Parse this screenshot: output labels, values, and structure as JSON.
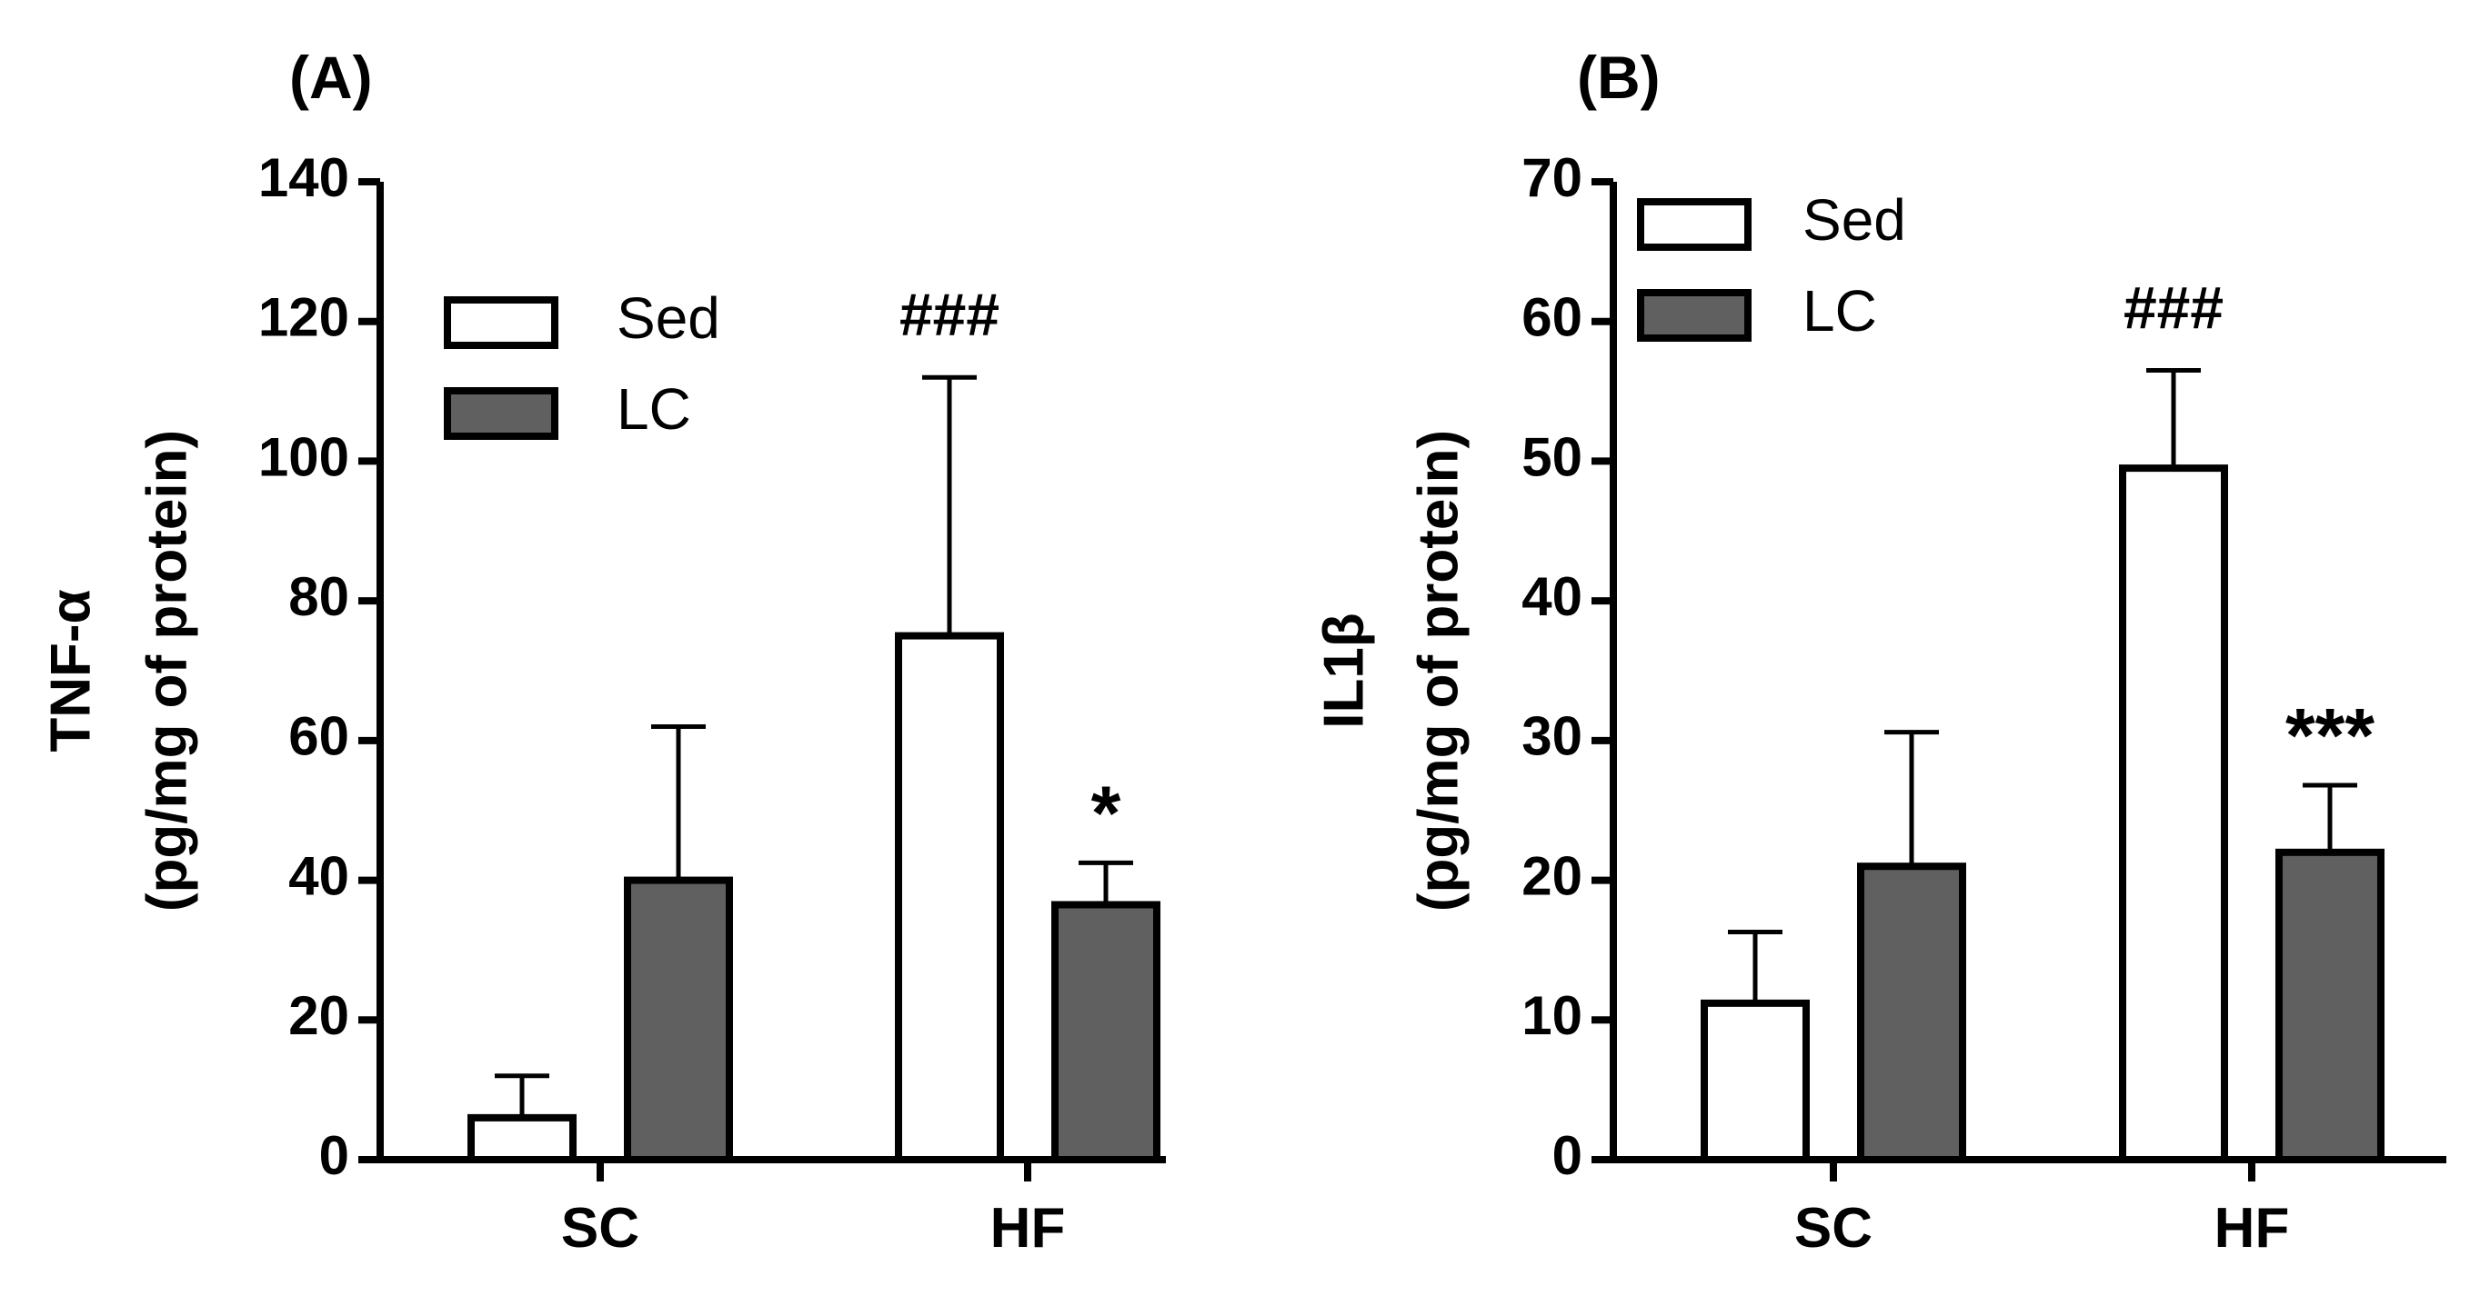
{
  "chart_data": [
    {
      "type": "bar",
      "panel_label": "(A)",
      "ylabel_line1": "TNF-α",
      "ylabel_line2": "(pg/mg of protein)",
      "categories": [
        "SC",
        "HF"
      ],
      "ylim": [
        0,
        140
      ],
      "yticks": [
        0,
        20,
        40,
        60,
        80,
        100,
        120,
        140
      ],
      "series": [
        {
          "name": "Sed",
          "color": "#ffffff",
          "values": [
            6,
            75
          ],
          "errors": [
            6,
            37
          ]
        },
        {
          "name": "LC",
          "color": "#606060",
          "values": [
            40,
            36.5
          ],
          "errors": [
            22,
            6
          ]
        }
      ],
      "annotations": [
        {
          "text": "###",
          "category": 1,
          "series": 0
        },
        {
          "text": "*",
          "category": 1,
          "series": 1
        }
      ],
      "legend_position": "top-left"
    },
    {
      "type": "bar",
      "panel_label": "(B)",
      "ylabel_line1": "IL1β",
      "ylabel_line2": "(pg/mg of protein)",
      "categories": [
        "SC",
        "HF"
      ],
      "ylim": [
        0,
        70
      ],
      "yticks": [
        0,
        10,
        20,
        30,
        40,
        50,
        60,
        70
      ],
      "series": [
        {
          "name": "Sed",
          "color": "#ffffff",
          "values": [
            11.2,
            49.5
          ],
          "errors": [
            5.1,
            7
          ]
        },
        {
          "name": "LC",
          "color": "#606060",
          "values": [
            21,
            22
          ],
          "errors": [
            9.6,
            4.8
          ]
        }
      ],
      "annotations": [
        {
          "text": "###",
          "category": 1,
          "series": 0
        },
        {
          "text": "***",
          "category": 1,
          "series": 1
        }
      ],
      "legend_position": "top-left"
    }
  ]
}
